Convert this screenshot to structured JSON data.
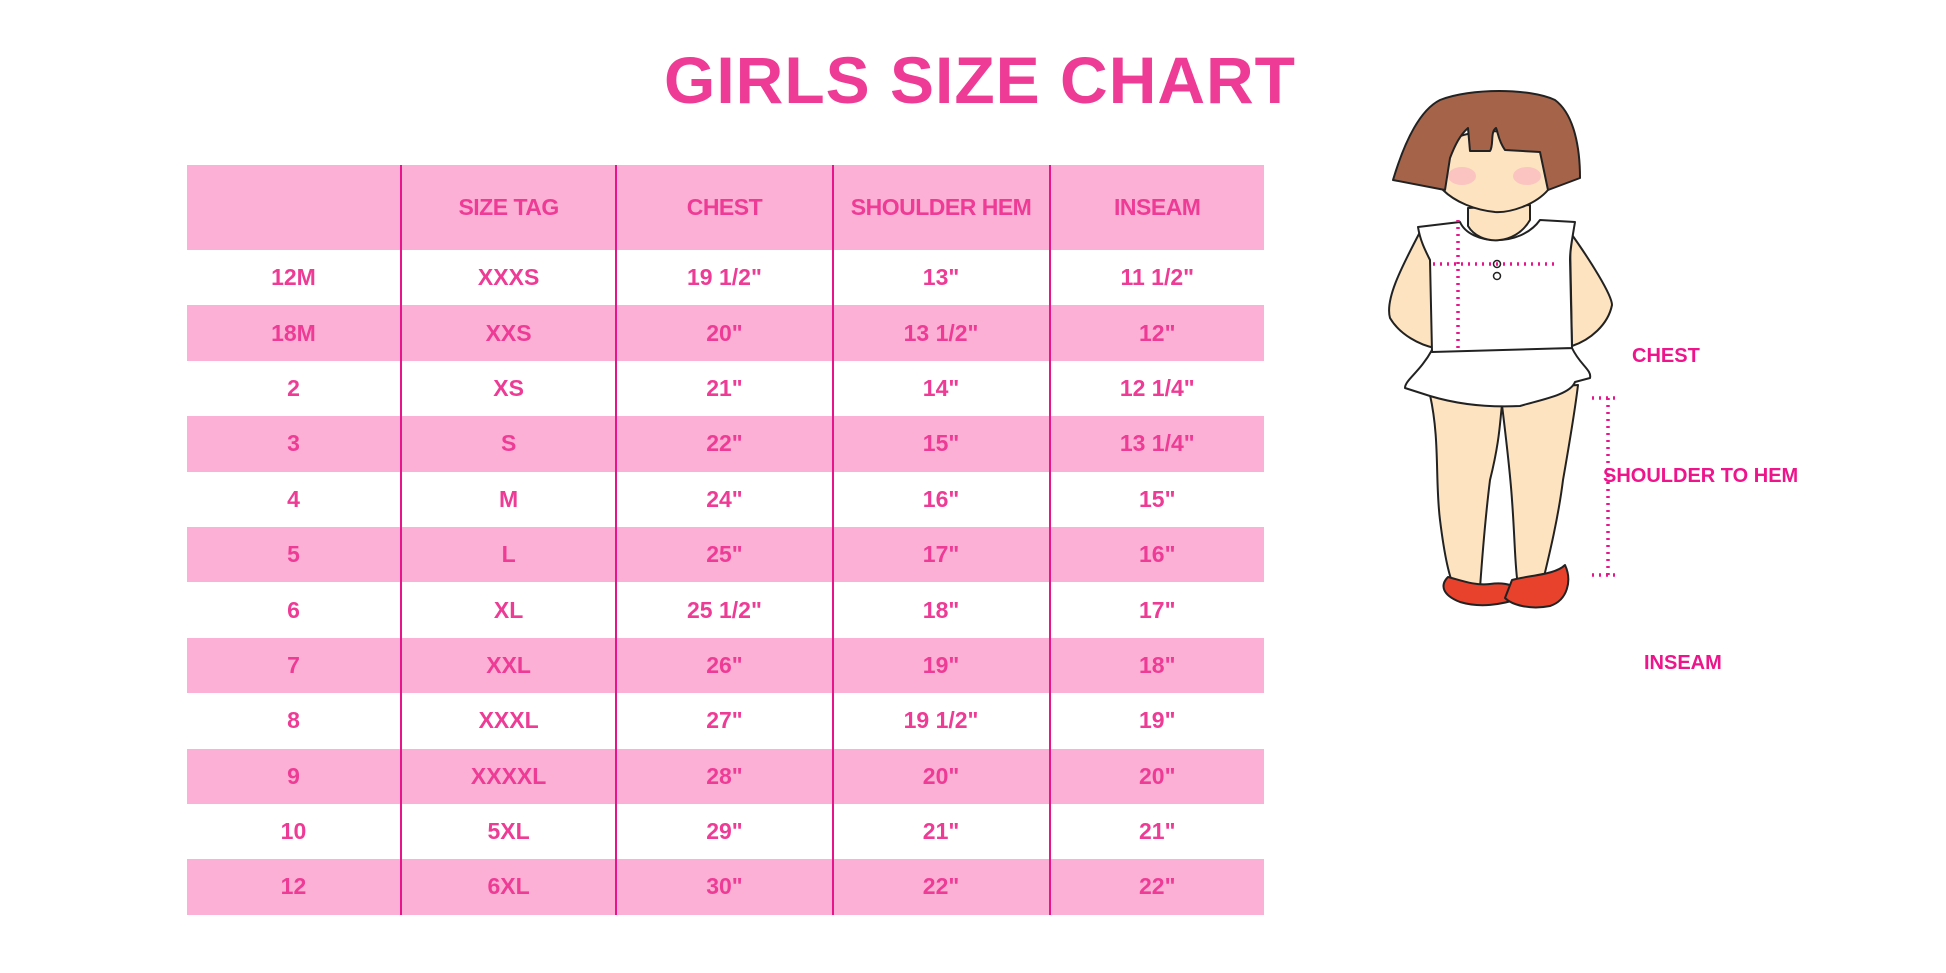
{
  "title": "GIRLS SIZE CHART",
  "table": {
    "headers": [
      "",
      "SIZE TAG",
      "CHEST",
      "SHOULDER HEM",
      "INSEAM"
    ],
    "rows": [
      [
        "12M",
        "XXXS",
        "19 1/2\"",
        "13\"",
        "11 1/2\""
      ],
      [
        "18M",
        "XXS",
        "20\"",
        "13 1/2\"",
        "12\""
      ],
      [
        "2",
        "XS",
        "21\"",
        "14\"",
        "12 1/4\""
      ],
      [
        "3",
        "S",
        "22\"",
        "15\"",
        "13 1/4\""
      ],
      [
        "4",
        "M",
        "24\"",
        "16\"",
        "15\""
      ],
      [
        "5",
        "L",
        "25\"",
        "17\"",
        "16\""
      ],
      [
        "6",
        "XL",
        "25 1/2\"",
        "18\"",
        "17\""
      ],
      [
        "7",
        "XXL",
        "26\"",
        "19\"",
        "18\""
      ],
      [
        "8",
        "XXXL",
        "27\"",
        "19 1/2\"",
        "19\""
      ],
      [
        "9",
        "XXXXL",
        "28\"",
        "20\"",
        "20\""
      ],
      [
        "10",
        "5XL",
        "29\"",
        "21\"",
        "21\""
      ],
      [
        "12",
        "6XL",
        "30\"",
        "22\"",
        "22\""
      ]
    ]
  },
  "figure": {
    "labels": {
      "chest": "CHEST",
      "shoulder_to_hem": "SHOULDER TO HEM",
      "inseam": "INSEAM"
    }
  },
  "colors": {
    "accent": "#ee3b96",
    "stripe": "#fdb0d5",
    "divider": "#e8148c"
  }
}
